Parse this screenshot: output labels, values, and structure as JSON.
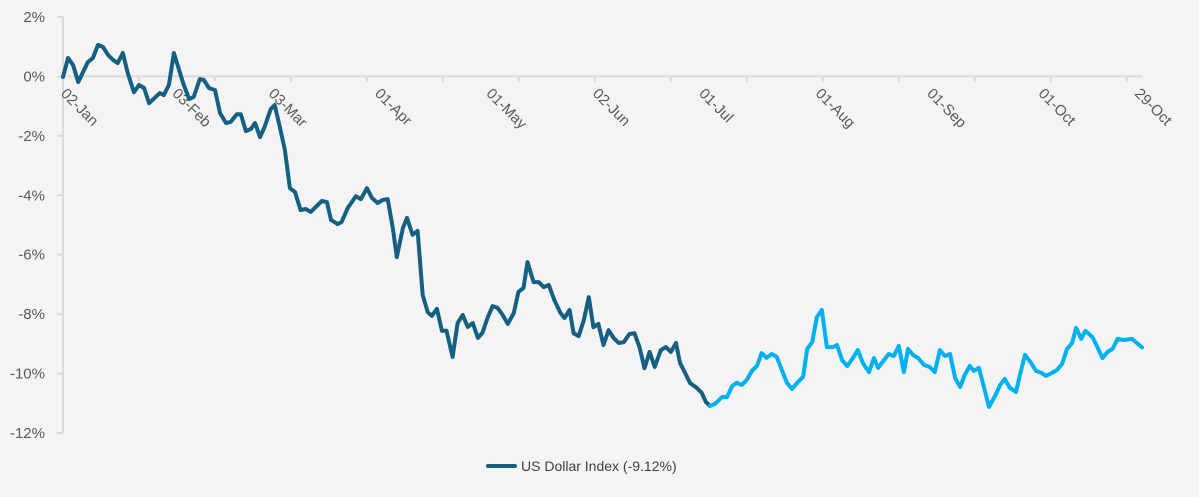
{
  "chart_data": {
    "type": "line",
    "title": "",
    "xlabel": "",
    "ylabel": "",
    "ylim": [
      -12,
      2
    ],
    "xlim": [
      0,
      213
    ],
    "yticks": [
      2,
      0,
      -2,
      -4,
      -6,
      -8,
      -10,
      -12
    ],
    "ytick_labels": [
      "2%",
      "0%",
      "-2%",
      "-4%",
      "-6%",
      "-8%",
      "-10%",
      "-12%"
    ],
    "xtick_marks_every": 15,
    "xtick_labels": [
      {
        "label": "02-Jan",
        "x": 0
      },
      {
        "label": "03-Feb",
        "x": 22
      },
      {
        "label": "03-Mar",
        "x": 41
      },
      {
        "label": "01-Apr",
        "x": 62
      },
      {
        "label": "01-May",
        "x": 84
      },
      {
        "label": "02-Jun",
        "x": 105
      },
      {
        "label": "01-Jul",
        "x": 126
      },
      {
        "label": "01-Aug",
        "x": 149
      },
      {
        "label": "01-Sep",
        "x": 171
      },
      {
        "label": "01-Oct",
        "x": 193
      },
      {
        "label": "29-Oct",
        "x": 212
      }
    ],
    "grid": false,
    "legend_position": "bottom",
    "series": [
      {
        "name": "US Dollar Index (-9.12%)",
        "color": "#156082",
        "highlight_color": "#00B0F0",
        "highlight_from_x": 127.7,
        "x": [
          0,
          1,
          2,
          3,
          4.9,
          5.9,
          6.9,
          7.9,
          8.9,
          9.9,
          10.8,
          11.8,
          12.8,
          14,
          15,
          16,
          17,
          19.1,
          19.9,
          20.9,
          21.9,
          23.7,
          24.9,
          25.8,
          27,
          27.8,
          28.8,
          30,
          31,
          32.2,
          33.1,
          34.3,
          35.1,
          36.1,
          37.1,
          37.9,
          38.9,
          39.8,
          41,
          41.8,
          42.8,
          43.8,
          44.8,
          45.8,
          46.9,
          47.9,
          48.9,
          51.1,
          52.1,
          52.9,
          54.2,
          55,
          56.2,
          57.8,
          58.8,
          60,
          61,
          62.1,
          63.1,
          64.1,
          65.1,
          65.9,
          67.1,
          67.9,
          69,
          70,
          71,
          72,
          72.8,
          73.8,
          74.8,
          75.7,
          76.9,
          77.9,
          78.9,
          79.9,
          80.9,
          81.9,
          82.8,
          83.8,
          84.8,
          85.8,
          86.8,
          87.8,
          89,
          89.9,
          90.9,
          91.7,
          92.9,
          93.9,
          94.9,
          95.9,
          97,
          98.2,
          99,
          100,
          100.8,
          101.8,
          102.8,
          103.8,
          104.7,
          105.7,
          106.7,
          107.7,
          108.7,
          109.7,
          110.7,
          111.8,
          112.8,
          113.8,
          114.8,
          115.8,
          116.8,
          118,
          119,
          120,
          121,
          121.8,
          122.8,
          123.8,
          125.1,
          126.1,
          126.9,
          127.7,
          128.7,
          130.1,
          131.1,
          132.1,
          133,
          134,
          135,
          136,
          137,
          137.9,
          138.9,
          139.9,
          140.9,
          141.9,
          142.9,
          143.9,
          145.1,
          146.1,
          146.9,
          147.9,
          148.8,
          149.8,
          150.8,
          152,
          152.8,
          153.8,
          154.8,
          155.8,
          156.9,
          157.9,
          159.1,
          160.1,
          160.9,
          162.1,
          163,
          164,
          165,
          166,
          166.8,
          167.8,
          168.8,
          170,
          171.1,
          172.1,
          173.1,
          174.1,
          175.1,
          176.1,
          177.1,
          178,
          179,
          179.8,
          180.8,
          181.8,
          182.8,
          184,
          185,
          185.9,
          186.9,
          188.1,
          188.9,
          189.9,
          191.1,
          192.1,
          193.2,
          194,
          195.2,
          196.2,
          197.2,
          198.2,
          199.2,
          200,
          201,
          201.8,
          203.2,
          204.2,
          205.2,
          206.2,
          207.2,
          208.2,
          209.4,
          211,
          212.2,
          213
        ],
        "y": [
          -0.02,
          0.62,
          0.38,
          -0.19,
          0.48,
          0.62,
          1.06,
          0.99,
          0.72,
          0.55,
          0.45,
          0.79,
          0.11,
          -0.53,
          -0.29,
          -0.39,
          -0.9,
          -0.56,
          -0.63,
          -0.29,
          0.79,
          -0.22,
          -0.76,
          -0.69,
          -0.09,
          -0.12,
          -0.39,
          -0.46,
          -1.23,
          -1.57,
          -1.53,
          -1.27,
          -1.27,
          -1.84,
          -1.77,
          -1.57,
          -2.04,
          -1.7,
          -1.1,
          -0.96,
          -1.7,
          -2.48,
          -3.76,
          -3.89,
          -4.5,
          -4.46,
          -4.56,
          -4.19,
          -4.23,
          -4.83,
          -4.97,
          -4.9,
          -4.43,
          -4.03,
          -4.13,
          -3.76,
          -4.09,
          -4.26,
          -4.16,
          -4.13,
          -5.1,
          -6.08,
          -5.1,
          -4.76,
          -5.33,
          -5.2,
          -7.36,
          -7.93,
          -8.06,
          -7.82,
          -8.56,
          -8.56,
          -9.44,
          -8.3,
          -8.03,
          -8.43,
          -8.3,
          -8.8,
          -8.63,
          -8.13,
          -7.73,
          -7.79,
          -8.03,
          -8.33,
          -7.96,
          -7.25,
          -7.12,
          -6.25,
          -6.92,
          -6.92,
          -7.09,
          -7.02,
          -7.53,
          -7.96,
          -8.13,
          -7.86,
          -8.64,
          -8.74,
          -8.2,
          -7.43,
          -8.44,
          -8.33,
          -9.04,
          -8.54,
          -8.8,
          -8.97,
          -8.94,
          -8.67,
          -8.64,
          -9.11,
          -9.82,
          -9.27,
          -9.78,
          -9.21,
          -9.11,
          -9.27,
          -8.97,
          -9.64,
          -9.98,
          -10.32,
          -10.48,
          -10.65,
          -10.95,
          -11.09,
          -11.02,
          -10.79,
          -10.79,
          -10.42,
          -10.31,
          -10.38,
          -10.21,
          -9.91,
          -9.74,
          -9.31,
          -9.47,
          -9.34,
          -9.44,
          -9.88,
          -10.31,
          -10.52,
          -10.28,
          -10.11,
          -9.17,
          -8.94,
          -8.1,
          -7.86,
          -9.11,
          -9.11,
          -9.04,
          -9.55,
          -9.75,
          -9.51,
          -9.21,
          -9.65,
          -9.95,
          -9.48,
          -9.81,
          -9.54,
          -9.34,
          -9.41,
          -9.07,
          -9.95,
          -9.17,
          -9.37,
          -9.48,
          -9.71,
          -9.78,
          -9.95,
          -9.21,
          -9.41,
          -9.34,
          -10.15,
          -10.45,
          -10.05,
          -9.74,
          -9.91,
          -9.81,
          -10.45,
          -11.12,
          -10.75,
          -10.38,
          -10.18,
          -10.48,
          -10.62,
          -10.05,
          -9.37,
          -9.64,
          -9.91,
          -9.98,
          -10.08,
          -9.98,
          -9.88,
          -9.68,
          -9.17,
          -8.97,
          -8.46,
          -8.83,
          -8.56,
          -8.77,
          -9.11,
          -9.48,
          -9.27,
          -9.17,
          -8.83,
          -8.87,
          -8.83,
          -9,
          -9.12
        ]
      }
    ]
  },
  "axis_color": "#d9d9d9",
  "text_color": "#595959"
}
